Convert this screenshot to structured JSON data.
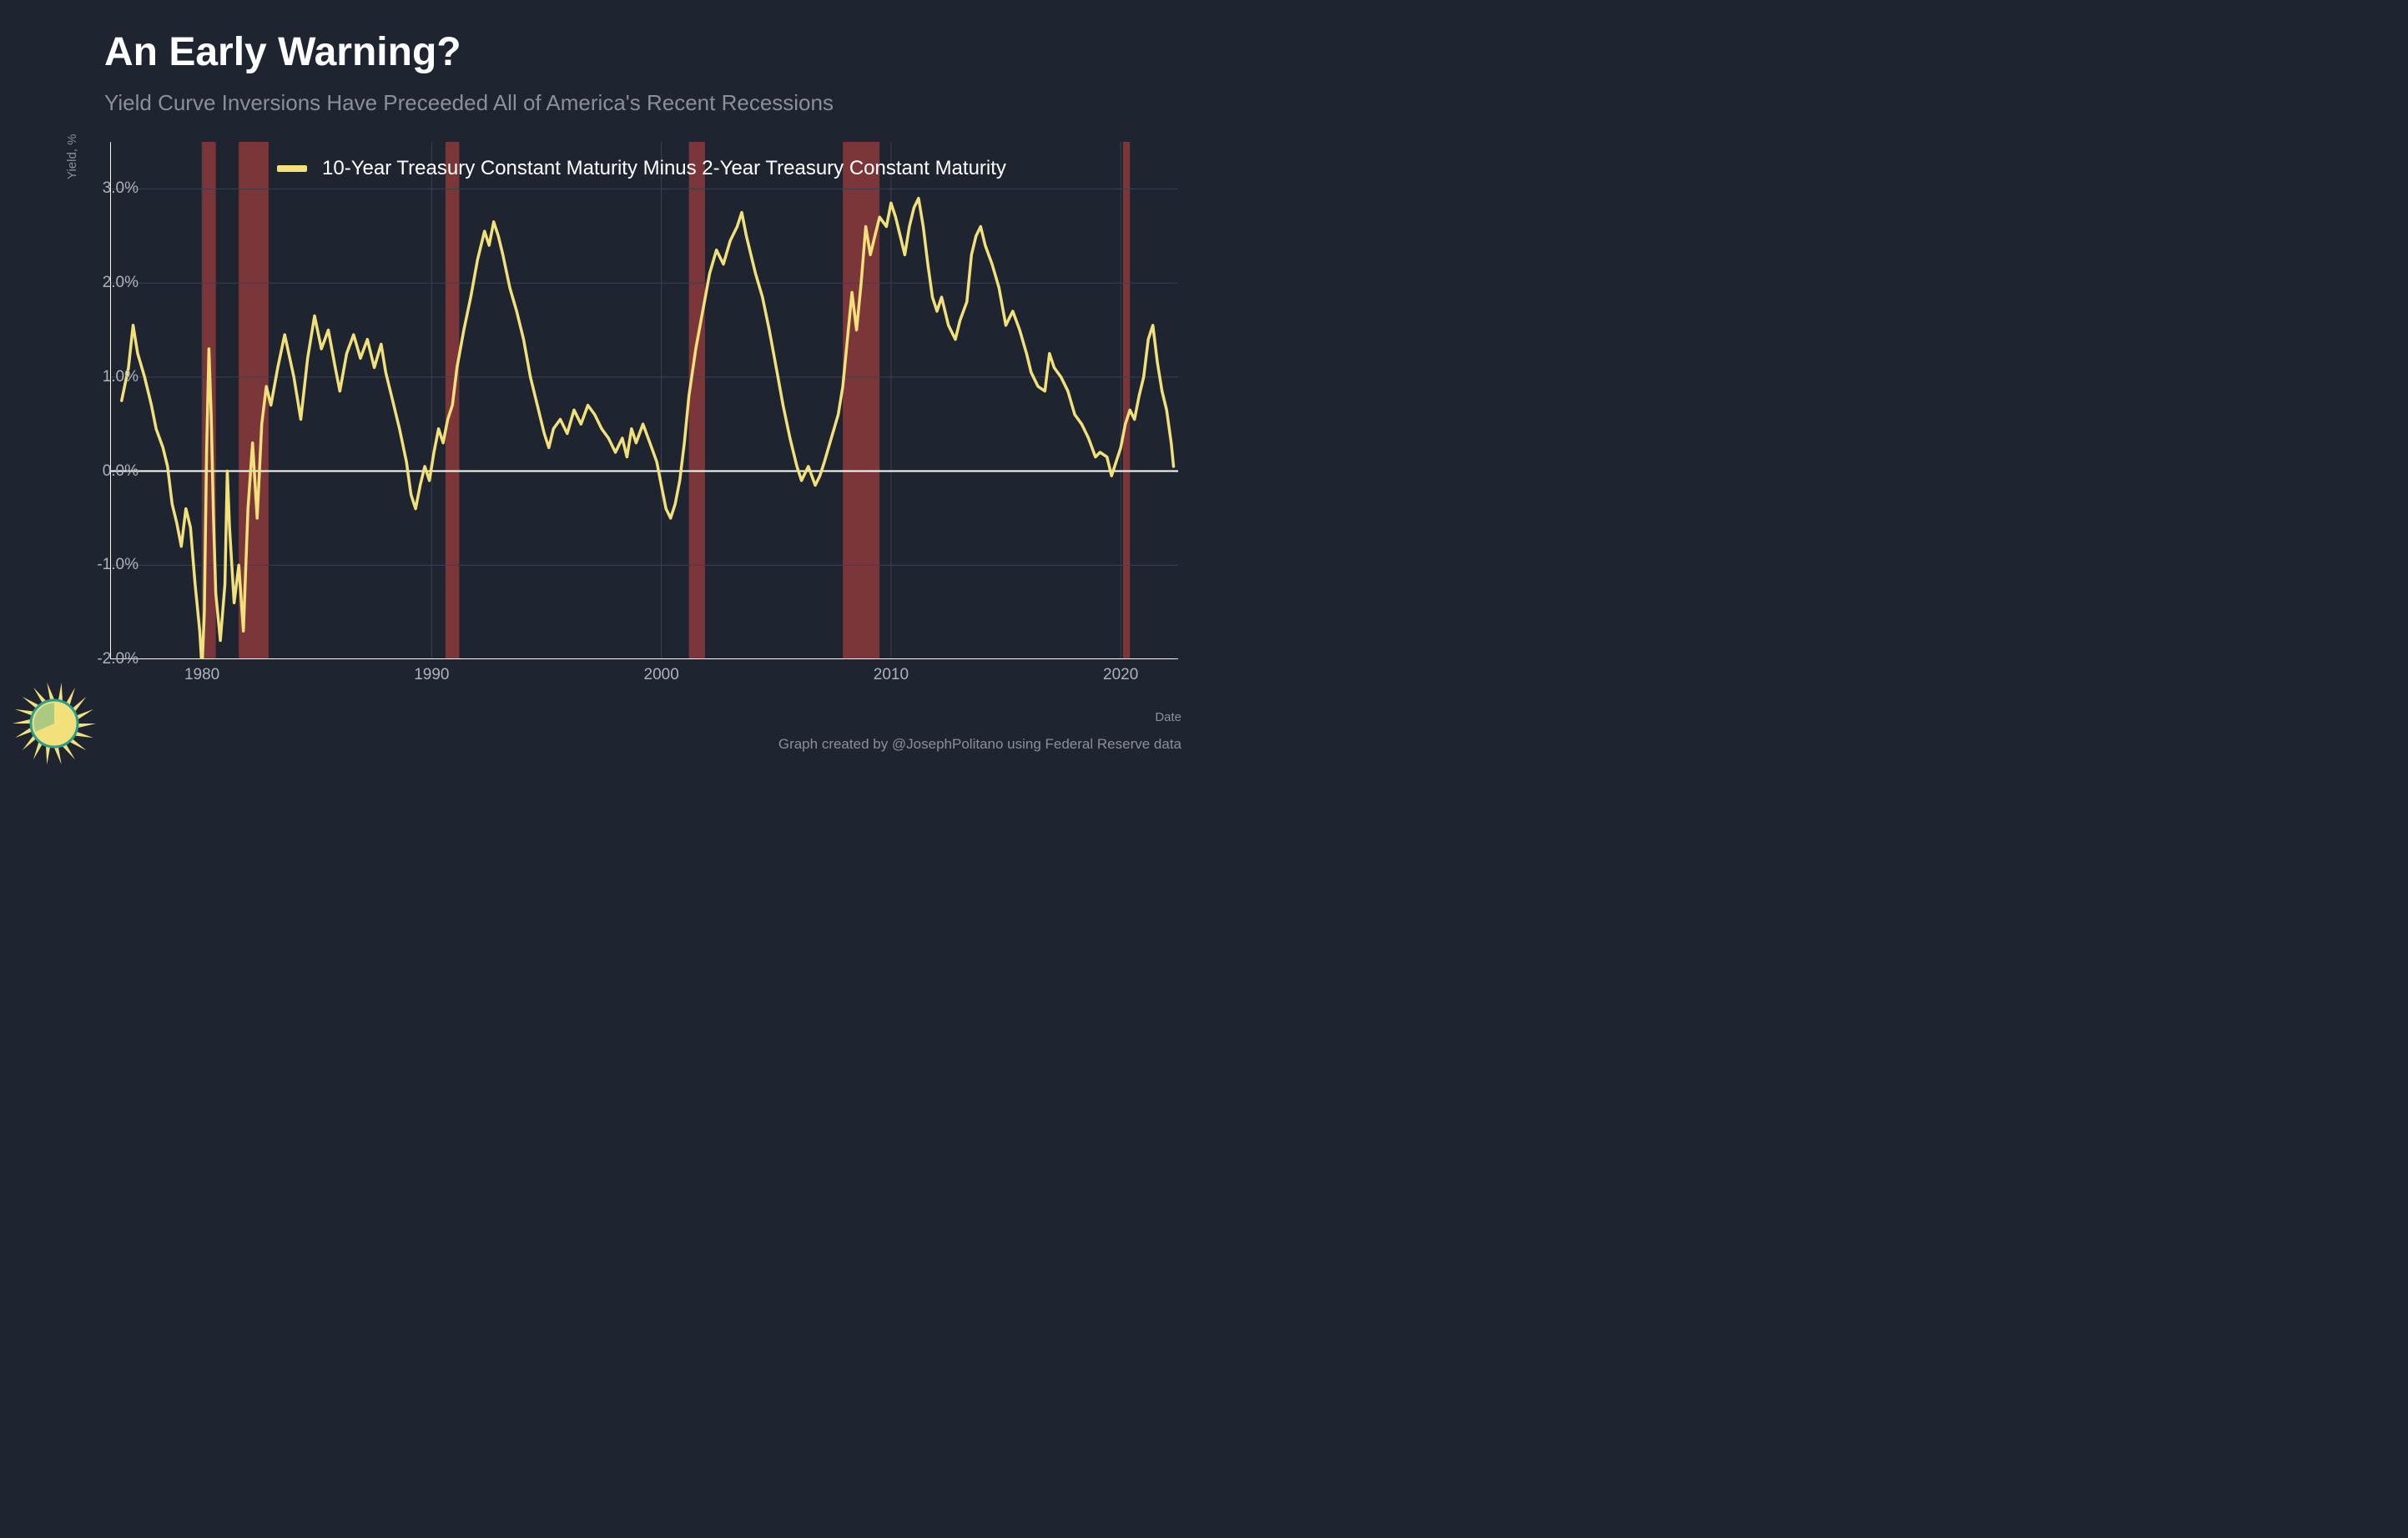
{
  "title": "An Early Warning?",
  "title_fontsize": 48,
  "subtitle": "Yield Curve Inversions Have Preceeded All of America's Recent Recessions",
  "subtitle_fontsize": 26,
  "background_color": "#1e2430",
  "text_color_primary": "#ffffff",
  "text_color_secondary": "#8a8f99",
  "grid_color": "#3a4150",
  "axis_color": "#ffffff",
  "zero_line_color": "#ffffff",
  "yaxis_label": "Yield, %",
  "xaxis_label": "Date",
  "credit": "Graph created by @JosephPolitano using Federal Reserve data",
  "credit_fontsize": 17,
  "axis_label_fontsize": 15,
  "tick_fontsize": 19,
  "legend_label": "10-Year Treasury Constant Maturity Minus 2-Year Treasury Constant Maturity",
  "legend_fontsize": 24,
  "series_color": "#f2e07a",
  "recession_color": "#8b3a3a",
  "recession_opacity": 0.85,
  "line_width": 3.5,
  "chart": {
    "type": "line",
    "xlim": [
      1976,
      2022.5
    ],
    "ylim": [
      -2.0,
      3.5
    ],
    "yticks": [
      -2.0,
      -1.0,
      0.0,
      1.0,
      2.0,
      3.0
    ],
    "ytick_labels": [
      "-2.0%",
      "-1.0%",
      "0.0%",
      "1.0%",
      "2.0%",
      "3.0%"
    ],
    "xticks": [
      1980,
      1990,
      2000,
      2010,
      2020
    ],
    "xtick_labels": [
      "1980",
      "1990",
      "2000",
      "2010",
      "2020"
    ],
    "recessions": [
      {
        "start": 1980.0,
        "end": 1980.6
      },
      {
        "start": 1981.6,
        "end": 1982.9
      },
      {
        "start": 1990.6,
        "end": 1991.2
      },
      {
        "start": 2001.2,
        "end": 2001.9
      },
      {
        "start": 2007.9,
        "end": 2009.5
      },
      {
        "start": 2020.1,
        "end": 2020.4
      }
    ],
    "series": [
      {
        "x": 1976.5,
        "y": 0.75
      },
      {
        "x": 1976.8,
        "y": 1.1
      },
      {
        "x": 1977.0,
        "y": 1.55
      },
      {
        "x": 1977.2,
        "y": 1.25
      },
      {
        "x": 1977.5,
        "y": 1.0
      },
      {
        "x": 1977.8,
        "y": 0.7
      },
      {
        "x": 1978.0,
        "y": 0.45
      },
      {
        "x": 1978.3,
        "y": 0.25
      },
      {
        "x": 1978.5,
        "y": 0.05
      },
      {
        "x": 1978.7,
        "y": -0.35
      },
      {
        "x": 1978.9,
        "y": -0.55
      },
      {
        "x": 1979.1,
        "y": -0.8
      },
      {
        "x": 1979.3,
        "y": -0.4
      },
      {
        "x": 1979.5,
        "y": -0.6
      },
      {
        "x": 1979.7,
        "y": -1.2
      },
      {
        "x": 1979.9,
        "y": -1.7
      },
      {
        "x": 1980.0,
        "y": -2.1
      },
      {
        "x": 1980.1,
        "y": -1.5
      },
      {
        "x": 1980.2,
        "y": 0.2
      },
      {
        "x": 1980.3,
        "y": 1.3
      },
      {
        "x": 1980.4,
        "y": 0.6
      },
      {
        "x": 1980.5,
        "y": -0.5
      },
      {
        "x": 1980.6,
        "y": -1.3
      },
      {
        "x": 1980.8,
        "y": -1.8
      },
      {
        "x": 1981.0,
        "y": -1.2
      },
      {
        "x": 1981.1,
        "y": 0.0
      },
      {
        "x": 1981.2,
        "y": -0.6
      },
      {
        "x": 1981.4,
        "y": -1.4
      },
      {
        "x": 1981.6,
        "y": -1.0
      },
      {
        "x": 1981.8,
        "y": -1.7
      },
      {
        "x": 1982.0,
        "y": -0.4
      },
      {
        "x": 1982.2,
        "y": 0.3
      },
      {
        "x": 1982.4,
        "y": -0.5
      },
      {
        "x": 1982.6,
        "y": 0.5
      },
      {
        "x": 1982.8,
        "y": 0.9
      },
      {
        "x": 1983.0,
        "y": 0.7
      },
      {
        "x": 1983.3,
        "y": 1.1
      },
      {
        "x": 1983.6,
        "y": 1.45
      },
      {
        "x": 1984.0,
        "y": 1.0
      },
      {
        "x": 1984.3,
        "y": 0.55
      },
      {
        "x": 1984.6,
        "y": 1.2
      },
      {
        "x": 1984.9,
        "y": 1.65
      },
      {
        "x": 1985.2,
        "y": 1.3
      },
      {
        "x": 1985.5,
        "y": 1.5
      },
      {
        "x": 1985.8,
        "y": 1.1
      },
      {
        "x": 1986.0,
        "y": 0.85
      },
      {
        "x": 1986.3,
        "y": 1.25
      },
      {
        "x": 1986.6,
        "y": 1.45
      },
      {
        "x": 1986.9,
        "y": 1.2
      },
      {
        "x": 1987.2,
        "y": 1.4
      },
      {
        "x": 1987.5,
        "y": 1.1
      },
      {
        "x": 1987.8,
        "y": 1.35
      },
      {
        "x": 1988.0,
        "y": 1.05
      },
      {
        "x": 1988.3,
        "y": 0.75
      },
      {
        "x": 1988.6,
        "y": 0.45
      },
      {
        "x": 1988.9,
        "y": 0.1
      },
      {
        "x": 1989.1,
        "y": -0.25
      },
      {
        "x": 1989.3,
        "y": -0.4
      },
      {
        "x": 1989.5,
        "y": -0.15
      },
      {
        "x": 1989.7,
        "y": 0.05
      },
      {
        "x": 1989.9,
        "y": -0.1
      },
      {
        "x": 1990.1,
        "y": 0.2
      },
      {
        "x": 1990.3,
        "y": 0.45
      },
      {
        "x": 1990.5,
        "y": 0.3
      },
      {
        "x": 1990.7,
        "y": 0.55
      },
      {
        "x": 1990.9,
        "y": 0.7
      },
      {
        "x": 1991.1,
        "y": 1.1
      },
      {
        "x": 1991.4,
        "y": 1.5
      },
      {
        "x": 1991.7,
        "y": 1.85
      },
      {
        "x": 1992.0,
        "y": 2.25
      },
      {
        "x": 1992.3,
        "y": 2.55
      },
      {
        "x": 1992.5,
        "y": 2.4
      },
      {
        "x": 1992.7,
        "y": 2.65
      },
      {
        "x": 1992.9,
        "y": 2.5
      },
      {
        "x": 1993.1,
        "y": 2.3
      },
      {
        "x": 1993.4,
        "y": 1.95
      },
      {
        "x": 1993.7,
        "y": 1.7
      },
      {
        "x": 1994.0,
        "y": 1.4
      },
      {
        "x": 1994.3,
        "y": 1.0
      },
      {
        "x": 1994.6,
        "y": 0.7
      },
      {
        "x": 1994.9,
        "y": 0.4
      },
      {
        "x": 1995.1,
        "y": 0.25
      },
      {
        "x": 1995.3,
        "y": 0.45
      },
      {
        "x": 1995.6,
        "y": 0.55
      },
      {
        "x": 1995.9,
        "y": 0.4
      },
      {
        "x": 1996.2,
        "y": 0.65
      },
      {
        "x": 1996.5,
        "y": 0.5
      },
      {
        "x": 1996.8,
        "y": 0.7
      },
      {
        "x": 1997.1,
        "y": 0.6
      },
      {
        "x": 1997.4,
        "y": 0.45
      },
      {
        "x": 1997.7,
        "y": 0.35
      },
      {
        "x": 1998.0,
        "y": 0.2
      },
      {
        "x": 1998.3,
        "y": 0.35
      },
      {
        "x": 1998.5,
        "y": 0.15
      },
      {
        "x": 1998.7,
        "y": 0.45
      },
      {
        "x": 1998.9,
        "y": 0.3
      },
      {
        "x": 1999.2,
        "y": 0.5
      },
      {
        "x": 1999.5,
        "y": 0.3
      },
      {
        "x": 1999.8,
        "y": 0.1
      },
      {
        "x": 2000.0,
        "y": -0.15
      },
      {
        "x": 2000.2,
        "y": -0.4
      },
      {
        "x": 2000.4,
        "y": -0.5
      },
      {
        "x": 2000.6,
        "y": -0.35
      },
      {
        "x": 2000.8,
        "y": -0.1
      },
      {
        "x": 2001.0,
        "y": 0.3
      },
      {
        "x": 2001.2,
        "y": 0.8
      },
      {
        "x": 2001.5,
        "y": 1.3
      },
      {
        "x": 2001.8,
        "y": 1.7
      },
      {
        "x": 2002.1,
        "y": 2.1
      },
      {
        "x": 2002.4,
        "y": 2.35
      },
      {
        "x": 2002.7,
        "y": 2.2
      },
      {
        "x": 2003.0,
        "y": 2.45
      },
      {
        "x": 2003.3,
        "y": 2.6
      },
      {
        "x": 2003.5,
        "y": 2.75
      },
      {
        "x": 2003.7,
        "y": 2.5
      },
      {
        "x": 2003.9,
        "y": 2.3
      },
      {
        "x": 2004.1,
        "y": 2.1
      },
      {
        "x": 2004.4,
        "y": 1.85
      },
      {
        "x": 2004.7,
        "y": 1.5
      },
      {
        "x": 2005.0,
        "y": 1.1
      },
      {
        "x": 2005.3,
        "y": 0.7
      },
      {
        "x": 2005.6,
        "y": 0.35
      },
      {
        "x": 2005.9,
        "y": 0.05
      },
      {
        "x": 2006.1,
        "y": -0.1
      },
      {
        "x": 2006.4,
        "y": 0.05
      },
      {
        "x": 2006.7,
        "y": -0.15
      },
      {
        "x": 2006.9,
        "y": -0.05
      },
      {
        "x": 2007.1,
        "y": 0.1
      },
      {
        "x": 2007.4,
        "y": 0.35
      },
      {
        "x": 2007.7,
        "y": 0.6
      },
      {
        "x": 2007.9,
        "y": 0.9
      },
      {
        "x": 2008.1,
        "y": 1.4
      },
      {
        "x": 2008.3,
        "y": 1.9
      },
      {
        "x": 2008.5,
        "y": 1.5
      },
      {
        "x": 2008.7,
        "y": 2.0
      },
      {
        "x": 2008.9,
        "y": 2.6
      },
      {
        "x": 2009.1,
        "y": 2.3
      },
      {
        "x": 2009.3,
        "y": 2.5
      },
      {
        "x": 2009.5,
        "y": 2.7
      },
      {
        "x": 2009.8,
        "y": 2.6
      },
      {
        "x": 2010.0,
        "y": 2.85
      },
      {
        "x": 2010.2,
        "y": 2.7
      },
      {
        "x": 2010.4,
        "y": 2.5
      },
      {
        "x": 2010.6,
        "y": 2.3
      },
      {
        "x": 2010.8,
        "y": 2.6
      },
      {
        "x": 2011.0,
        "y": 2.8
      },
      {
        "x": 2011.2,
        "y": 2.9
      },
      {
        "x": 2011.4,
        "y": 2.6
      },
      {
        "x": 2011.6,
        "y": 2.2
      },
      {
        "x": 2011.8,
        "y": 1.85
      },
      {
        "x": 2012.0,
        "y": 1.7
      },
      {
        "x": 2012.2,
        "y": 1.85
      },
      {
        "x": 2012.5,
        "y": 1.55
      },
      {
        "x": 2012.8,
        "y": 1.4
      },
      {
        "x": 2013.0,
        "y": 1.6
      },
      {
        "x": 2013.3,
        "y": 1.8
      },
      {
        "x": 2013.5,
        "y": 2.3
      },
      {
        "x": 2013.7,
        "y": 2.5
      },
      {
        "x": 2013.9,
        "y": 2.6
      },
      {
        "x": 2014.1,
        "y": 2.4
      },
      {
        "x": 2014.4,
        "y": 2.2
      },
      {
        "x": 2014.7,
        "y": 1.95
      },
      {
        "x": 2015.0,
        "y": 1.55
      },
      {
        "x": 2015.3,
        "y": 1.7
      },
      {
        "x": 2015.6,
        "y": 1.5
      },
      {
        "x": 2015.9,
        "y": 1.25
      },
      {
        "x": 2016.1,
        "y": 1.05
      },
      {
        "x": 2016.4,
        "y": 0.9
      },
      {
        "x": 2016.7,
        "y": 0.85
      },
      {
        "x": 2016.9,
        "y": 1.25
      },
      {
        "x": 2017.1,
        "y": 1.1
      },
      {
        "x": 2017.4,
        "y": 1.0
      },
      {
        "x": 2017.7,
        "y": 0.85
      },
      {
        "x": 2018.0,
        "y": 0.6
      },
      {
        "x": 2018.3,
        "y": 0.5
      },
      {
        "x": 2018.6,
        "y": 0.35
      },
      {
        "x": 2018.9,
        "y": 0.15
      },
      {
        "x": 2019.1,
        "y": 0.2
      },
      {
        "x": 2019.4,
        "y": 0.15
      },
      {
        "x": 2019.6,
        "y": -0.05
      },
      {
        "x": 2019.8,
        "y": 0.1
      },
      {
        "x": 2020.0,
        "y": 0.25
      },
      {
        "x": 2020.2,
        "y": 0.5
      },
      {
        "x": 2020.4,
        "y": 0.65
      },
      {
        "x": 2020.6,
        "y": 0.55
      },
      {
        "x": 2020.8,
        "y": 0.8
      },
      {
        "x": 2021.0,
        "y": 1.0
      },
      {
        "x": 2021.2,
        "y": 1.4
      },
      {
        "x": 2021.4,
        "y": 1.55
      },
      {
        "x": 2021.6,
        "y": 1.15
      },
      {
        "x": 2021.8,
        "y": 0.85
      },
      {
        "x": 2022.0,
        "y": 0.65
      },
      {
        "x": 2022.2,
        "y": 0.3
      },
      {
        "x": 2022.3,
        "y": 0.05
      }
    ]
  },
  "logo": {
    "sun_fill": "#f2e07a",
    "sun_stroke": "#2a9d8f",
    "ray_color": "#f2e07a"
  }
}
